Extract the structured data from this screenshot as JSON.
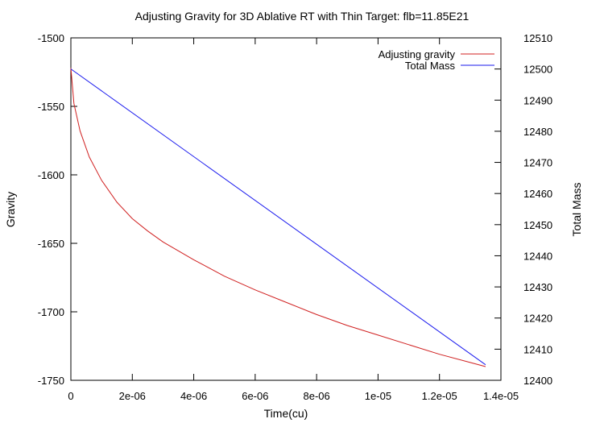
{
  "chart_data": {
    "type": "line",
    "title": "Adjusting Gravity for 3D Ablative RT with Thin Target: flb=11.85E21",
    "xlabel": "Time(cu)",
    "ylabel": "Gravity",
    "y2label": "Total Mass",
    "xlim": [
      0,
      1.4e-05
    ],
    "ylim": [
      -1750,
      -1500
    ],
    "y2lim": [
      12400,
      12510
    ],
    "x_ticks": [
      0,
      2e-06,
      4e-06,
      6e-06,
      8e-06,
      1e-05,
      1.2e-05,
      1.4e-05
    ],
    "x_tick_labels": [
      "0",
      "2e-06",
      "4e-06",
      "6e-06",
      "8e-06",
      "1e-05",
      "1.2e-05",
      "1.4e-05"
    ],
    "y_ticks": [
      -1500,
      -1550,
      -1600,
      -1650,
      -1700,
      -1750
    ],
    "y_tick_labels": [
      "-1500",
      "-1550",
      "-1600",
      "-1650",
      "-1700",
      "-1750"
    ],
    "y2_ticks": [
      12510,
      12500,
      12490,
      12480,
      12470,
      12460,
      12450,
      12440,
      12430,
      12420,
      12410,
      12400
    ],
    "y2_tick_labels": [
      "12510",
      "12500",
      "12490",
      "12480",
      "12470",
      "12460",
      "12450",
      "12440",
      "12430",
      "12420",
      "12410",
      "12400"
    ],
    "grid": false,
    "legend_position": "top-right",
    "series": [
      {
        "name": "Adjusting gravity",
        "axis": "left",
        "color": "#d02020",
        "x": [
          0,
          1e-07,
          3e-07,
          6e-07,
          1e-06,
          1.5e-06,
          2e-06,
          2.5e-06,
          3e-06,
          4e-06,
          5e-06,
          6e-06,
          7e-06,
          8e-06,
          9e-06,
          1e-05,
          1.1e-05,
          1.2e-05,
          1.3e-05,
          1.35e-05
        ],
        "y": [
          -1522,
          -1548,
          -1568,
          -1587,
          -1604,
          -1620,
          -1632,
          -1641,
          -1649,
          -1662,
          -1674,
          -1684,
          -1693,
          -1702,
          -1710,
          -1717,
          -1724,
          -1731,
          -1737,
          -1740
        ]
      },
      {
        "name": "Total Mass",
        "axis": "right",
        "color": "#1a1aee",
        "x": [
          0,
          1.35e-05
        ],
        "y": [
          12500,
          12405
        ]
      }
    ]
  }
}
